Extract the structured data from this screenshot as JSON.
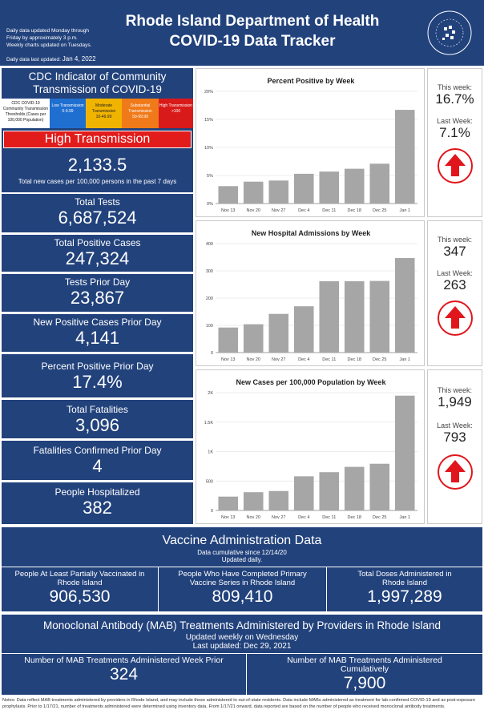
{
  "header": {
    "notes": [
      "Daily data updated Monday through",
      "Friday by approximately 3 p.m.",
      "Weekly charts updated on Tuesdays."
    ],
    "last_updated_label": "Daily data last updated:",
    "last_updated": "Jan 4, 2022",
    "title_line1": "Rhode Island Department of Health",
    "title_line2": "COVID-19 Data Tracker",
    "logo_text": "RHODE ISLAND DEPARTMENT OF HEALTH"
  },
  "cdc": {
    "title": "CDC Indicator of Community Transmission of COVID-19",
    "threshold_label": "CDC COVID-19 Community Transmission Thresholds (Cases per 100,000 Population)",
    "levels": [
      {
        "name": "Low Transmission",
        "range": "0-9.99",
        "color": "#1f6fd1"
      },
      {
        "name": "Moderate Transmission",
        "range": "10-49.99",
        "color": "#f0b400"
      },
      {
        "name": "Substantial Transmission",
        "range": "50-99.99",
        "color": "#f07a1a"
      },
      {
        "name": "High Transmission",
        "range": ">100",
        "color": "#d91a1a"
      }
    ],
    "current_level": "High Transmission",
    "rate": "2,133.5",
    "rate_caption": "Total new cases per 100,000 persons in the past 7 days"
  },
  "stats": [
    {
      "label": "Total Tests",
      "value": "6,687,524"
    },
    {
      "label": "Total Positive Cases",
      "value": "247,324"
    },
    {
      "label": "Tests Prior Day",
      "value": "23,867"
    },
    {
      "label": "New Positive Cases Prior Day",
      "value": "4,141"
    },
    {
      "label": "Percent Positive Prior Day",
      "value": "17.4%"
    },
    {
      "label": "Total Fatalities",
      "value": "3,096"
    },
    {
      "label": "Fatalities Confirmed Prior Day",
      "value": "4"
    },
    {
      "label": "People Hospitalized",
      "value": "382"
    }
  ],
  "weekly": [
    {
      "this_week_label": "This week:",
      "this_week": "16.7%",
      "last_week_label": "Last Week:",
      "last_week": "7.1%",
      "trend_icon": "arrow-up-icon"
    },
    {
      "this_week_label": "This week:",
      "this_week": "347",
      "last_week_label": "Last Week:",
      "last_week": "263",
      "trend_icon": "arrow-up-icon"
    },
    {
      "this_week_label": "This week:",
      "this_week": "1,949",
      "last_week_label": "Last Week:",
      "last_week": "793",
      "trend_icon": "arrow-up-icon"
    }
  ],
  "chart_data": [
    {
      "type": "bar",
      "title": "Percent Positive by Week",
      "categories": [
        "Nov 13",
        "Nov 20",
        "Nov 27",
        "Dec 4",
        "Dec 11",
        "Dec 18",
        "Dec 25",
        "Jan 1"
      ],
      "values": [
        3.1,
        3.9,
        4.1,
        5.3,
        5.7,
        6.2,
        7.1,
        16.7
      ],
      "ylim": [
        0,
        20
      ],
      "yticks": [
        0,
        5,
        10,
        15,
        20
      ],
      "ytick_labels": [
        "0%",
        "5%",
        "10%",
        "15%",
        "20%"
      ],
      "bar_color": "#a6a6a6"
    },
    {
      "type": "bar",
      "title": "New Hospital Admissions by Week",
      "categories": [
        "Nov 13",
        "Nov 20",
        "Nov 27",
        "Dec 4",
        "Dec 11",
        "Dec 18",
        "Dec 25",
        "Jan 1"
      ],
      "values": [
        92,
        104,
        142,
        170,
        262,
        262,
        263,
        347
      ],
      "ylim": [
        0,
        400
      ],
      "yticks": [
        0,
        100,
        200,
        300,
        400
      ],
      "ytick_labels": [
        "0",
        "100",
        "200",
        "300",
        "400"
      ],
      "bar_color": "#a6a6a6"
    },
    {
      "type": "bar",
      "title": "New Cases per 100,000 Population by Week",
      "categories": [
        "Nov 13",
        "Nov 20",
        "Nov 27",
        "Dec 4",
        "Dec 11",
        "Dec 18",
        "Dec 25",
        "Jan 1"
      ],
      "values": [
        235,
        310,
        330,
        580,
        650,
        740,
        793,
        1949
      ],
      "ylim": [
        0,
        2000
      ],
      "yticks": [
        0,
        500,
        1000,
        1500,
        2000
      ],
      "ytick_labels": [
        "0",
        "500",
        "1K",
        "1.5K",
        "2K"
      ],
      "bar_color": "#a6a6a6"
    }
  ],
  "vaccine": {
    "title": "Vaccine Administration Data",
    "subtitle1": "Data cumulative since 12/14/20",
    "subtitle2": "Updated daily.",
    "items": [
      {
        "label": "People At Least Partially Vaccinated in Rhode Island",
        "value": "906,530"
      },
      {
        "label": "People Who Have Completed Primary Vaccine Series in Rhode Island",
        "value": "809,410"
      },
      {
        "label": "Total Doses Administered in Rhode Island",
        "value": "1,997,289"
      }
    ]
  },
  "mab": {
    "title": "Monoclonal Antibody (MAB) Treatments Administered by Providers in Rhode Island",
    "subtitle1": "Updated weekly on Wednesday",
    "subtitle2": "Last updated:   Dec 29, 2021",
    "items": [
      {
        "label": "Number of MAB Treatments Administered Week Prior",
        "value": "324"
      },
      {
        "label": "Number of MAB Treatments Administered Cumulatively",
        "value": "7,900"
      }
    ]
  },
  "notes": "Notes: Data reflect MAB treatments administered by providers in Rhode Island, and may include those administered to out-of-state residents. Data include MABs administered as treatment for lab-confirmed COVID-19 and as post-exposure prophylaxis. Prior to 1/17/21, number of treatments administered were determined using inventory data. From 1/17/21 onward, data reported are based on the number of people who received monoclonal antibody treatments."
}
